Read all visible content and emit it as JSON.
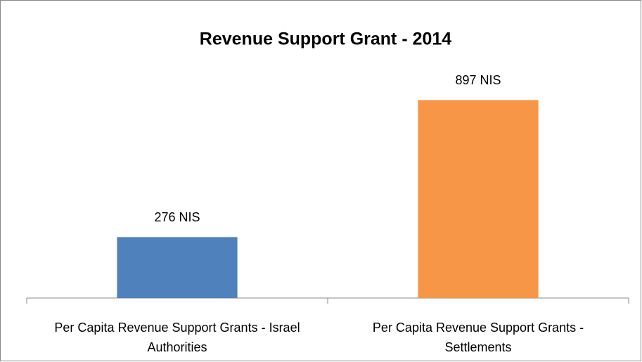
{
  "chart_data": {
    "type": "bar",
    "title": "Revenue Support Grant - 2014",
    "categories": [
      "Per Capita Revenue Support Grants - Israel Authorities",
      "Per Capita Revenue Support Grants - Settlements"
    ],
    "values": [
      276,
      897
    ],
    "value_labels": [
      "276 NIS",
      "897 NIS"
    ],
    "colors": [
      "#4f81bd",
      "#f79646"
    ],
    "ylim": [
      0,
      1000
    ]
  }
}
